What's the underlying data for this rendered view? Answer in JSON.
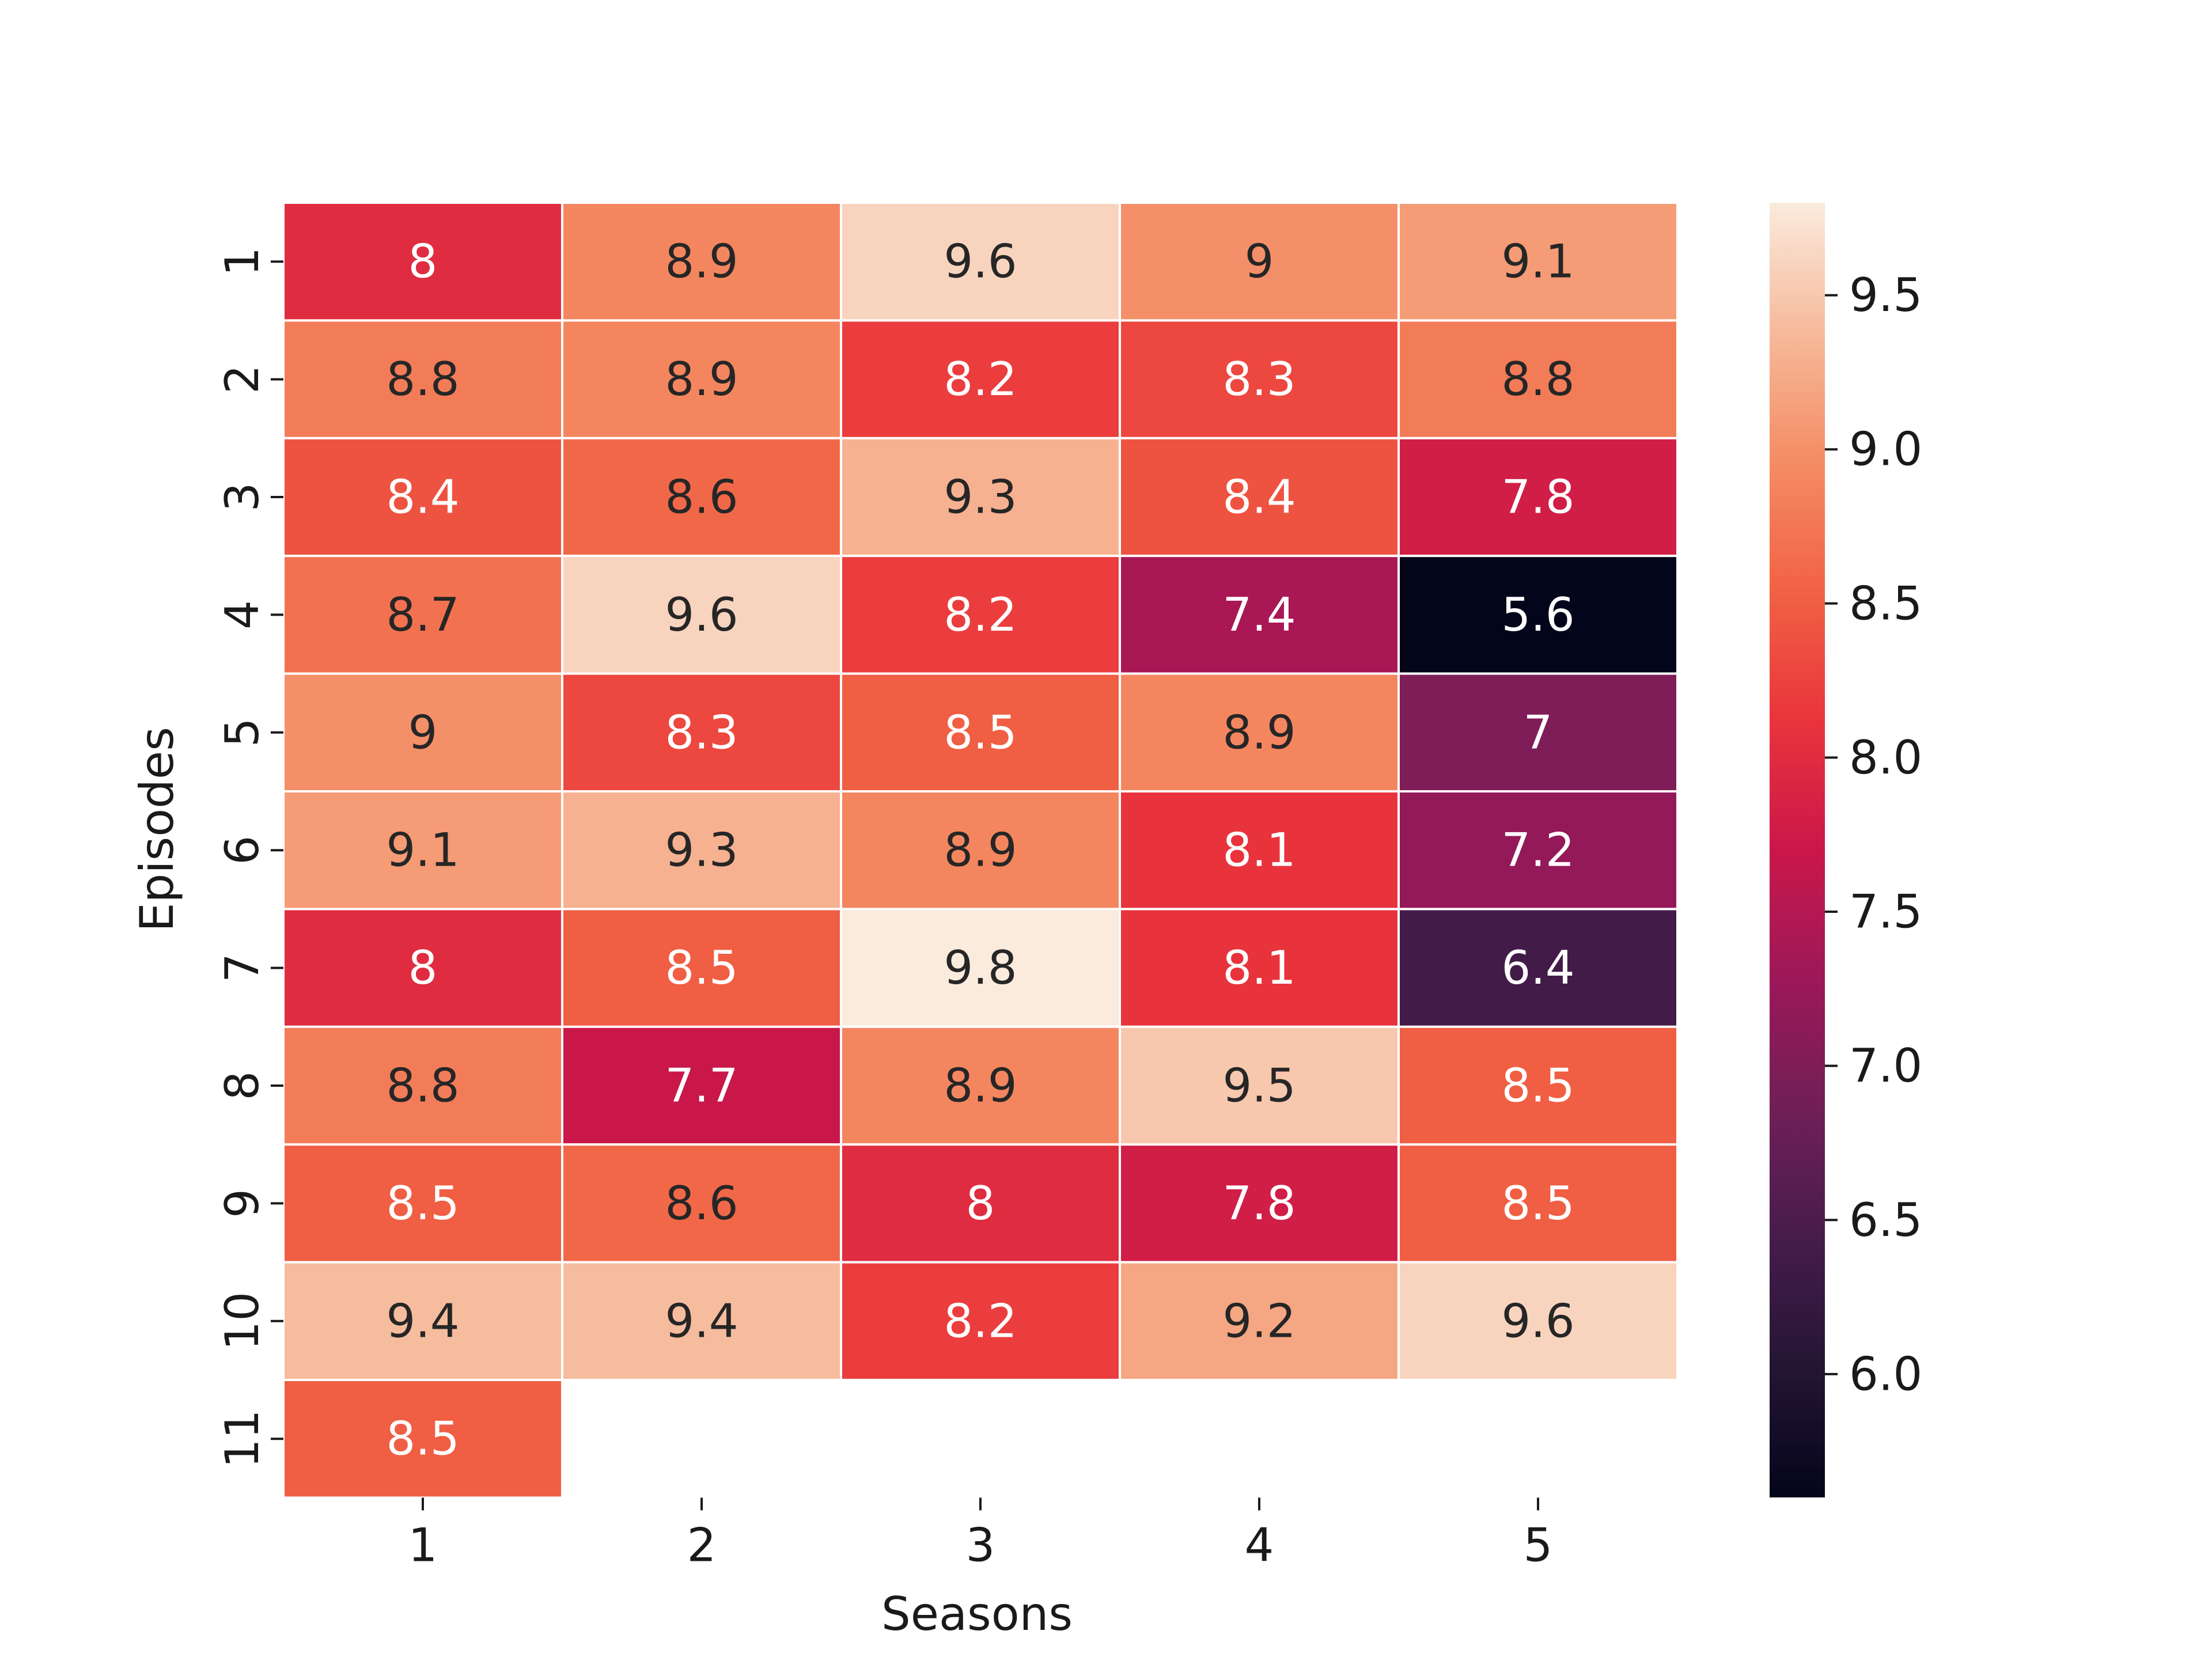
{
  "chart_data": {
    "type": "heatmap",
    "title": "",
    "xlabel": "Seasons",
    "ylabel": "Episodes",
    "x_categories": [
      "1",
      "2",
      "3",
      "4",
      "5"
    ],
    "y_categories": [
      "1",
      "2",
      "3",
      "4",
      "5",
      "6",
      "7",
      "8",
      "9",
      "10",
      "11"
    ],
    "values": [
      [
        8,
        8.9,
        9.6,
        9,
        9.1
      ],
      [
        8.8,
        8.9,
        8.2,
        8.3,
        8.8
      ],
      [
        8.4,
        8.6,
        9.3,
        8.4,
        7.8
      ],
      [
        8.7,
        9.6,
        8.2,
        7.4,
        5.6
      ],
      [
        9,
        8.3,
        8.5,
        8.9,
        7
      ],
      [
        9.1,
        9.3,
        8.9,
        8.1,
        7.2
      ],
      [
        8,
        8.5,
        9.8,
        8.1,
        6.4
      ],
      [
        8.8,
        7.7,
        8.9,
        9.5,
        8.5
      ],
      [
        8.5,
        8.6,
        8,
        7.8,
        8.5
      ],
      [
        9.4,
        9.4,
        8.2,
        9.2,
        9.6
      ],
      [
        8.5,
        null,
        null,
        null,
        null
      ]
    ],
    "colorbar": {
      "min": 5.6,
      "max": 9.8,
      "ticks": [
        6.0,
        6.5,
        7.0,
        7.5,
        8.0,
        8.5,
        9.0,
        9.5
      ],
      "tick_labels": [
        "6.0",
        "6.5",
        "7.0",
        "7.5",
        "8.0",
        "8.5",
        "9.0",
        "9.5"
      ],
      "colormap": "rocket"
    },
    "grid": false,
    "cell_separator_color": "#ffffff"
  }
}
